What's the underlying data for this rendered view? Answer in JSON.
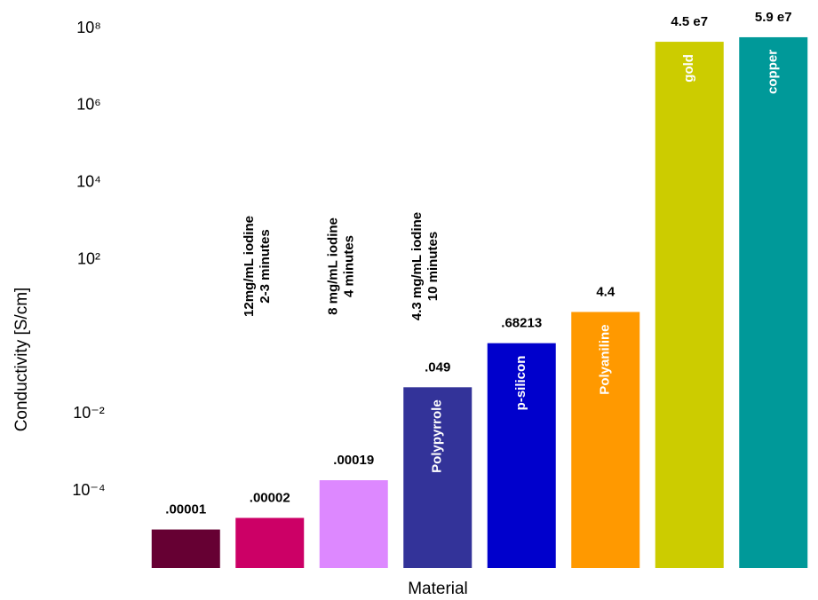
{
  "chart_data": {
    "type": "bar",
    "log_scale": true,
    "y_label": "Conductivity [S/cm]",
    "x_label": "Material",
    "categories": [
      null,
      null,
      null,
      "Polypyrrole",
      "p-silicon",
      "Polyaniline",
      "gold",
      "copper"
    ],
    "annotations": [
      [
        "12mg/mL iodine",
        "2-3 minutes"
      ],
      [
        "8 mg/mL iodine",
        "4 minutes"
      ],
      [
        "4.3 mg/mL iodine",
        "10 minutes"
      ]
    ],
    "values": [
      1e-05,
      2e-05,
      0.00019,
      0.049,
      0.68213,
      4.4,
      45000000,
      59000000
    ],
    "value_labels": [
      ".00001",
      ".00002",
      ".00019",
      ".049",
      ".68213",
      "4.4",
      "4.5 e7",
      "5.9 e7"
    ],
    "colors": [
      "#660033",
      "#cc0066",
      "#dd88ff",
      "#333399",
      "#0000cc",
      "#ff9900",
      "#cccc00",
      "#009999"
    ],
    "ylim": [
      1e-06,
      100000000
    ],
    "yticks": [
      {
        "value": 0.0001,
        "label": "10⁻⁴"
      },
      {
        "value": 0.01,
        "label": "10⁻²"
      },
      {
        "value": 100,
        "label": "10²"
      },
      {
        "value": 10000,
        "label": "10⁴"
      },
      {
        "value": 1000000,
        "label": "10⁶"
      },
      {
        "value": 100000000,
        "label": "10⁸"
      }
    ],
    "grid": false
  }
}
